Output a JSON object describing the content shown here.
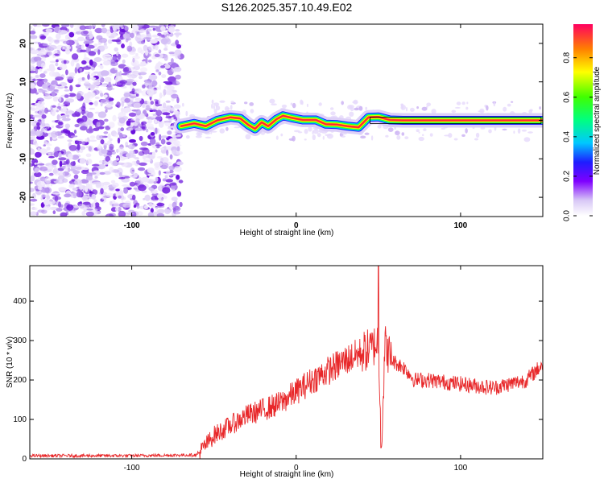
{
  "title": "S126.2025.357.10.49.E02",
  "chart_data": [
    {
      "type": "heatmap",
      "name": "spectrogram",
      "xlabel": "Height of straight line (km)",
      "ylabel": "Frequency (Hz)",
      "xlim": [
        -162,
        150
      ],
      "ylim": [
        -25,
        25
      ],
      "xticks": [
        "-100",
        "0",
        "100"
      ],
      "xtick_values": [
        -100,
        0,
        100
      ],
      "yticks": [
        "-20",
        "-10",
        "0",
        "10",
        "20"
      ],
      "ytick_values": [
        -20,
        -10,
        0,
        10,
        20
      ],
      "noise_region_x": [
        -162,
        -72
      ],
      "ridge_path": [
        [
          -70,
          -1.5
        ],
        [
          -62,
          -0.8
        ],
        [
          -55,
          -1.5
        ],
        [
          -48,
          0
        ],
        [
          -40,
          0.8
        ],
        [
          -34,
          0.5
        ],
        [
          -29,
          -1.2
        ],
        [
          -25,
          -2.2
        ],
        [
          -21,
          -0.5
        ],
        [
          -17,
          -1.5
        ],
        [
          -12,
          0.3
        ],
        [
          -8,
          1.2
        ],
        [
          -3,
          0.7
        ],
        [
          4,
          0.1
        ],
        [
          12,
          0.1
        ],
        [
          18,
          -1.0
        ],
        [
          25,
          -1.1
        ],
        [
          31,
          -1.5
        ],
        [
          38,
          -1.8
        ],
        [
          41,
          -0.5
        ],
        [
          44,
          0.8
        ],
        [
          50,
          0.9
        ],
        [
          57,
          0.1
        ],
        [
          65,
          0.0
        ],
        [
          80,
          0.0
        ],
        [
          150,
          0.0
        ]
      ],
      "colorbar": {
        "label": "Normalized spectral amplitude",
        "ticks": [
          "0.0",
          "0.2",
          "0.4",
          "0.6",
          "0.8"
        ],
        "tick_values": [
          0.0,
          0.2,
          0.4,
          0.6,
          0.8
        ],
        "range": [
          0,
          0.97
        ]
      }
    },
    {
      "type": "line",
      "name": "snr",
      "xlabel": "Height of straight line (km)",
      "ylabel": "SNR (10 * v/v)",
      "xlim": [
        -162,
        150
      ],
      "ylim": [
        0,
        490
      ],
      "xticks": [
        "-100",
        "0",
        "100"
      ],
      "xtick_values": [
        -100,
        0,
        100
      ],
      "yticks": [
        "0",
        "100",
        "200",
        "300",
        "400"
      ],
      "ytick_values": [
        0,
        100,
        200,
        300,
        400
      ],
      "color": "#e8282a",
      "trend_x": [
        -162,
        -100,
        -60,
        -50,
        -30,
        -10,
        10,
        30,
        40,
        46,
        50,
        52,
        54,
        58,
        66,
        72,
        80,
        100,
        120,
        140,
        150
      ],
      "trend_y": [
        8,
        8,
        10,
        60,
        110,
        140,
        200,
        250,
        270,
        280,
        300,
        40,
        290,
        250,
        230,
        200,
        200,
        190,
        180,
        200,
        240
      ],
      "peak": {
        "x": 50,
        "y": 490
      },
      "dip": {
        "x": 51.5,
        "y": 28
      }
    }
  ]
}
